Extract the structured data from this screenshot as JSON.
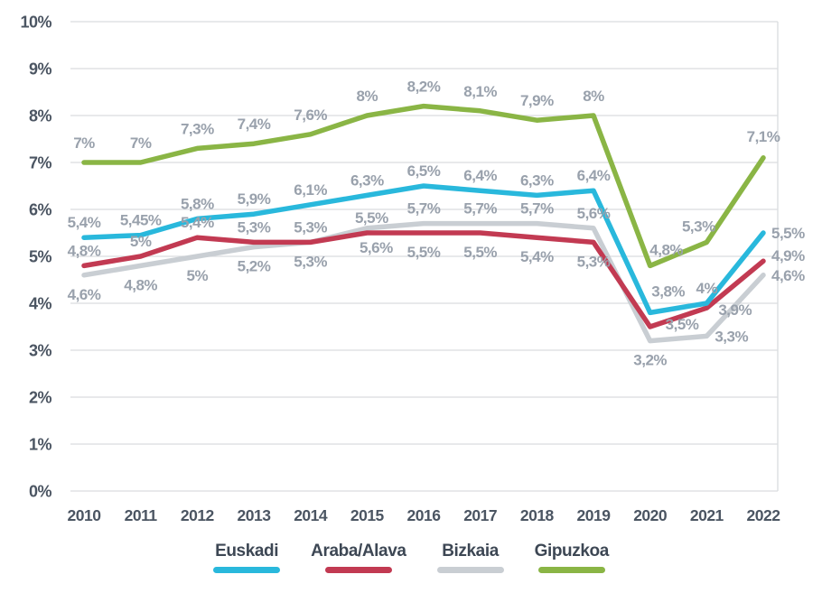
{
  "page": {
    "background": "#ffffff"
  },
  "chart_data": {
    "type": "line",
    "title": "",
    "categories": [
      "2010",
      "2011",
      "2012",
      "2013",
      "2014",
      "2015",
      "2016",
      "2017",
      "2018",
      "2019",
      "2020",
      "2021",
      "2022"
    ],
    "y_ticks": [
      "0%",
      "1%",
      "2%",
      "3%",
      "4%",
      "5%",
      "6%",
      "7%",
      "8%",
      "9%",
      "10%"
    ],
    "ylim": [
      0,
      10
    ],
    "grid": "horizontal",
    "legend_position": "bottom",
    "grid_color": "#d9dcdf",
    "axis_label_color": "#4b5562",
    "data_label_color": "#99a1ac",
    "series": [
      {
        "name": "Euskadi",
        "color": "#29b8dc",
        "values": [
          5.4,
          5.45,
          5.8,
          5.9,
          6.1,
          6.3,
          6.5,
          6.4,
          6.3,
          6.4,
          3.8,
          4,
          5.5
        ],
        "labels": [
          "5,4%",
          "5,45%",
          "5,8%",
          "5,9%",
          "6,1%",
          "6,3%",
          "6,5%",
          "6,4%",
          "6,3%",
          "6,4%",
          "3,8%",
          "4%",
          "5,5%"
        ],
        "label_sides": [
          "above",
          "above",
          "above",
          "above",
          "above",
          "above",
          "above",
          "above",
          "above",
          "above",
          "above",
          "above",
          "right"
        ]
      },
      {
        "name": "Araba/Alava",
        "color": "#c23a52",
        "values": [
          4.8,
          5,
          5.4,
          5.3,
          5.3,
          5.5,
          5.5,
          5.5,
          5.4,
          5.3,
          3.5,
          3.9,
          4.9
        ],
        "labels": [
          "4,8%",
          "5%",
          "5,4%",
          "5,3%",
          "5,3%",
          "5,5%",
          "5,5%",
          "5,5%",
          "5,4%",
          "5,3%",
          "3,5%",
          "3,9%",
          "4,9%"
        ],
        "label_sides": [
          "above",
          "above",
          "above",
          "above",
          "above",
          "above",
          "below",
          "below",
          "below",
          "below",
          "right",
          "right",
          "right"
        ]
      },
      {
        "name": "Bizkaia",
        "color": "#c9ced3",
        "values": [
          4.6,
          4.8,
          5,
          5.2,
          5.3,
          5.6,
          5.7,
          5.7,
          5.7,
          5.6,
          3.2,
          3.3,
          4.6
        ],
        "labels": [
          "4,6%",
          "4,8%",
          "5%",
          "5,2%",
          "5,3%",
          "5,6%",
          "5,7%",
          "5,7%",
          "5,7%",
          "5,6%",
          "3,2%",
          "3,3%",
          "4,6%"
        ],
        "label_sides": [
          "below",
          "below",
          "below",
          "below",
          "below",
          "below",
          "above",
          "above",
          "above",
          "above",
          "below",
          "right",
          "right"
        ]
      },
      {
        "name": "Gipuzkoa",
        "color": "#8ab545",
        "values": [
          7,
          7,
          7.3,
          7.4,
          7.6,
          8,
          8.2,
          8.1,
          7.9,
          8,
          4.8,
          5.3,
          7.1
        ],
        "labels": [
          "7%",
          "7%",
          "7,3%",
          "7,4%",
          "7,6%",
          "8%",
          "8,2%",
          "8,1%",
          "7,9%",
          "8%",
          "4,8%",
          "5,3%",
          "7,1%"
        ],
        "label_sides": [
          "above",
          "above",
          "above",
          "above",
          "above",
          "above",
          "above",
          "above",
          "above",
          "above",
          "above",
          "above",
          "above"
        ]
      }
    ]
  }
}
